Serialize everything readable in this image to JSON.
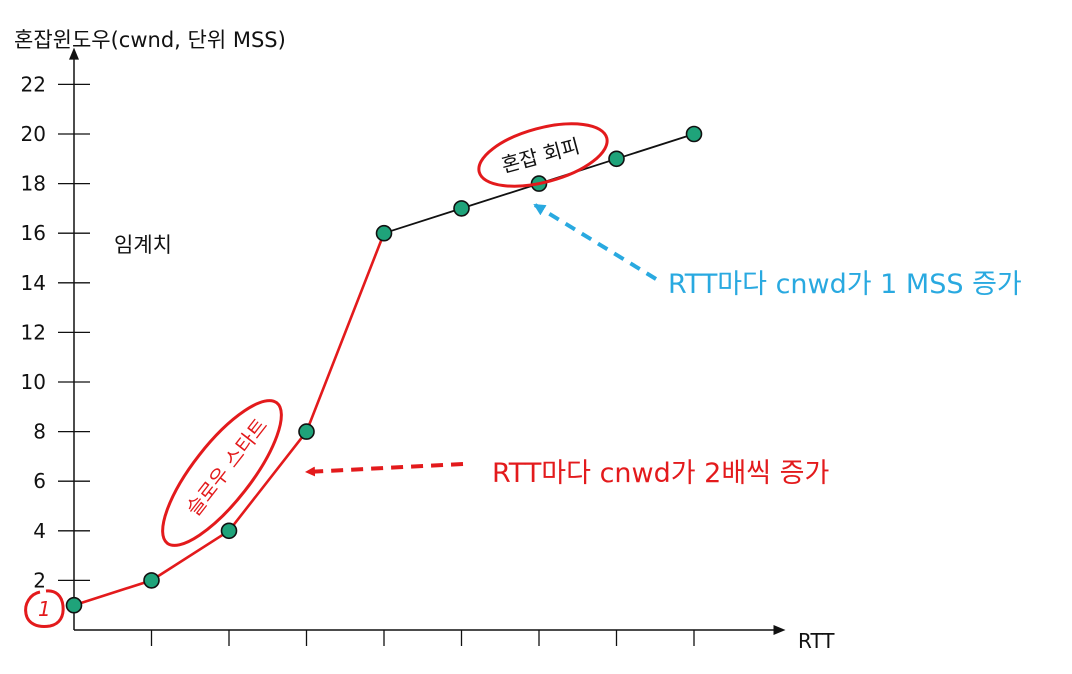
{
  "chart_data": {
    "type": "line",
    "ylabel": "혼잡윈도우(cwnd, 단위 MSS)",
    "xlabel": "RTT",
    "yticks": [
      2,
      4,
      6,
      8,
      10,
      12,
      14,
      16,
      18,
      20,
      22
    ],
    "ylim": [
      0,
      23
    ],
    "xlim": [
      0,
      9
    ],
    "x_tick_count": 8,
    "series": [
      {
        "color": "#e31a1c",
        "points": [
          [
            0,
            1
          ],
          [
            1,
            2
          ],
          [
            2,
            4
          ],
          [
            3,
            8
          ],
          [
            4,
            16
          ]
        ]
      },
      {
        "color": "#111111",
        "points": [
          [
            4,
            16
          ],
          [
            5,
            17
          ],
          [
            6,
            18
          ],
          [
            7,
            19
          ],
          [
            8,
            20
          ]
        ]
      }
    ],
    "marker_color": "#1fa37a",
    "annotations": {
      "threshold": "임계치",
      "slow_start": "슬로우 스타트",
      "congestion_avoidance": "혼잡 회피",
      "double_rule": "RTT마다 cnwd가 2배씩 증가",
      "linear_rule": "RTT마다 cnwd가 1 MSS 증가",
      "initial": "1"
    },
    "colors": {
      "red": "#e31a1c",
      "blue": "#29a9e0",
      "axis": "#111111"
    }
  }
}
